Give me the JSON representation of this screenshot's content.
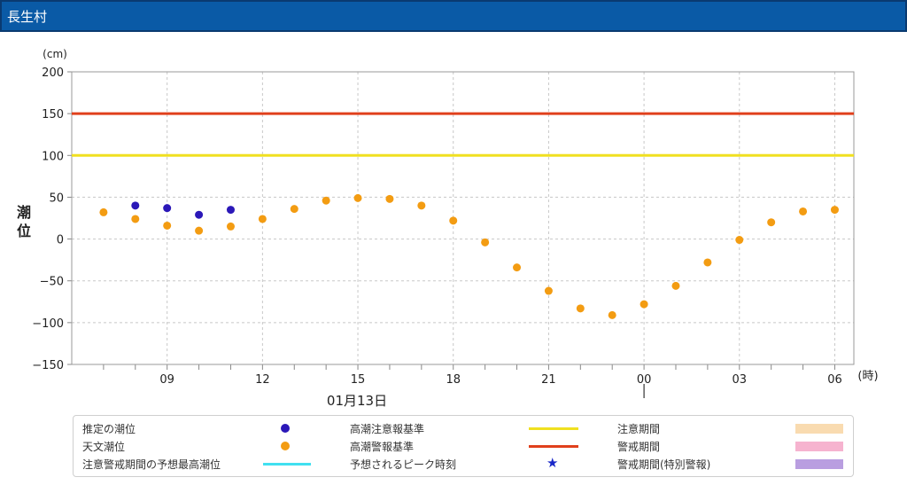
{
  "title": "長生村",
  "chart_data": {
    "type": "scatter",
    "y_unit": "(cm)",
    "ylabel": "潮位",
    "x_unit": "(時)",
    "date_label": "01月13日",
    "ylim": [
      -150,
      200
    ],
    "yticks": [
      200,
      150,
      100,
      50,
      0,
      -50,
      -100,
      -150
    ],
    "ytick_labels": [
      "200",
      "150",
      "100",
      "50",
      "0",
      "−50",
      "−100",
      "−150"
    ],
    "x_tick_labels": [
      {
        "h": 9,
        "label": "09"
      },
      {
        "h": 12,
        "label": "12"
      },
      {
        "h": 15,
        "label": "15"
      },
      {
        "h": 18,
        "label": "18"
      },
      {
        "h": 21,
        "label": "21"
      },
      {
        "h": 24,
        "label": "00"
      },
      {
        "h": 27,
        "label": "03"
      },
      {
        "h": 30,
        "label": "06"
      }
    ],
    "thresholds": [
      {
        "name": "高潮警報基準",
        "value": 150,
        "color": "#e0401c"
      },
      {
        "name": "高潮注意報基準",
        "value": 100,
        "color": "#f0e020"
      }
    ],
    "series": [
      {
        "name": "天文潮位",
        "color": "#f39c12",
        "hours": [
          7,
          8,
          9,
          10,
          11,
          12,
          13,
          14,
          15,
          16,
          17,
          18,
          19,
          20,
          21,
          22,
          23,
          24,
          25,
          26,
          27,
          28,
          29,
          30
        ],
        "values": [
          32,
          24,
          16,
          10,
          15,
          24,
          36,
          46,
          49,
          48,
          40,
          22,
          -4,
          -34,
          -62,
          -83,
          -91,
          -78,
          -56,
          -28,
          -1,
          20,
          33,
          35
        ]
      },
      {
        "name": "推定の潮位",
        "color": "#2b18b8",
        "hours": [
          8,
          9,
          10,
          11
        ],
        "values": [
          40,
          37,
          29,
          35
        ]
      }
    ],
    "grid": true
  },
  "legend": {
    "col1": [
      "推定の潮位",
      "天文潮位",
      "注意警戒期間の予想最高潮位"
    ],
    "col2": [
      "高潮注意報基準",
      "高潮警報基準",
      "予想されるピーク時刻"
    ],
    "col3": [
      "注意期間",
      "警戒期間",
      "警戒期間(特別警報)"
    ],
    "colors": {
      "estimated": "#2b18b8",
      "astro": "#f39c12",
      "forecast_max": "#40e0f0",
      "caution_std": "#f0e020",
      "warning_std": "#e0401c",
      "peak_star": "#1a28c8",
      "caution_period": "#f9dbb0",
      "warning_period": "#f6b3cf",
      "special_period": "#b99ee0"
    }
  }
}
